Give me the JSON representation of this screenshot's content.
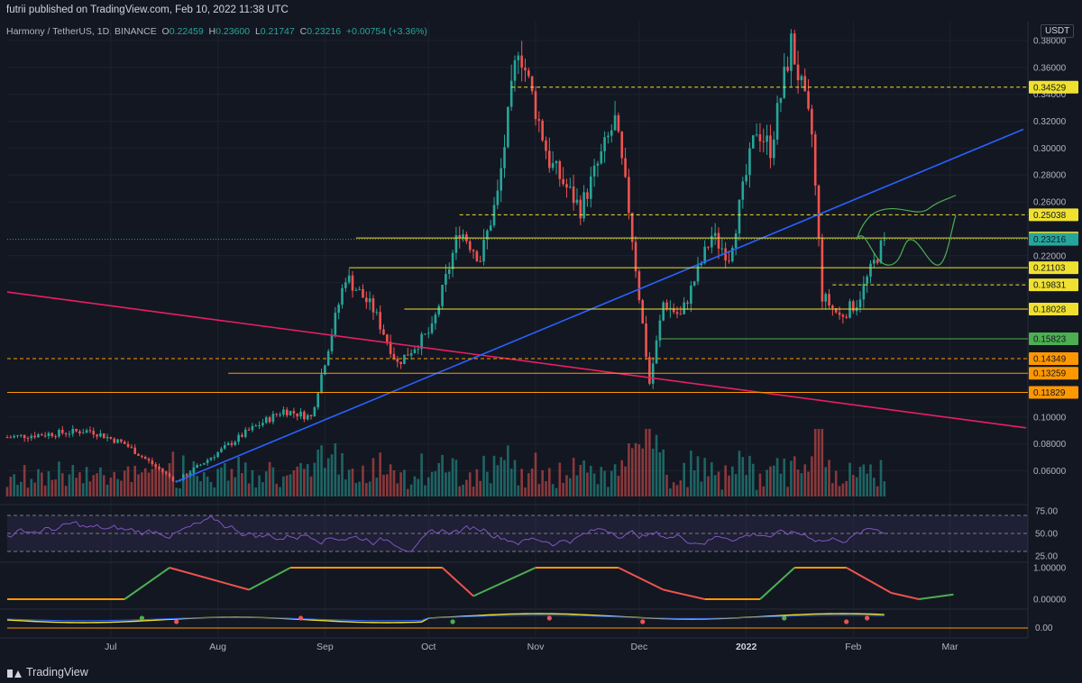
{
  "header": {
    "published": "futrii published on TradingView.com, Feb 10, 2022 11:38 UTC"
  },
  "legend": {
    "symbol": "Harmony / TetherUS, 1D, BINANCE",
    "o_label": "O",
    "o_value": "0.22459",
    "h_label": "H",
    "h_value": "0.23600",
    "l_label": "L",
    "l_value": "0.21747",
    "c_label": "C",
    "c_value": "0.23216",
    "change": "+0.00754 (+3.36%)"
  },
  "currency": "USDT",
  "footer": {
    "brand": "TradingView"
  },
  "colors": {
    "background": "#131722",
    "up": "#26a69a",
    "down": "#ef5350",
    "level_yellow": "#f0e130",
    "level_green": "#4caf50",
    "level_orange": "#ff9800",
    "trend_pink": "#e91e63",
    "trend_blue": "#2962ff",
    "projection_green": "#4caf50",
    "rsi": "#7e57c2"
  },
  "chart_data": [
    {
      "type": "candlestick",
      "title": "",
      "y_scale": "linear",
      "ylim": [
        0.05,
        0.385
      ],
      "y_ticks": [
        "0.38000",
        "0.36000",
        "0.34000",
        "0.32000",
        "0.30000",
        "0.28000",
        "0.26000",
        "0.22000",
        "0.20000",
        "0.10000",
        "0.08000",
        "0.06000"
      ],
      "x_ticks": [
        "Jul",
        "Aug",
        "Sep",
        "Oct",
        "Nov",
        "Dec",
        "2022",
        "Feb",
        "Mar"
      ],
      "last_price": "0.23216",
      "price_levels": [
        {
          "label": "0.34529",
          "value": 0.34529,
          "style": "dashed",
          "color": "yellow"
        },
        {
          "label": "0.25038",
          "value": 0.25038,
          "style": "dashed",
          "color": "yellow"
        },
        {
          "label": "0.23314",
          "value": 0.23314,
          "style": "solid",
          "color": "yellow"
        },
        {
          "label": "0.21103",
          "value": 0.21103,
          "style": "solid",
          "color": "yellow"
        },
        {
          "label": "0.19831",
          "value": 0.19831,
          "style": "dashed",
          "color": "yellow"
        },
        {
          "label": "0.18028",
          "value": 0.18028,
          "style": "solid",
          "color": "yellow"
        },
        {
          "label": "0.15823",
          "value": 0.15823,
          "style": "solid",
          "color": "green"
        },
        {
          "label": "0.14349",
          "value": 0.14349,
          "style": "dashed",
          "color": "orange"
        },
        {
          "label": "0.13259",
          "value": 0.13259,
          "style": "solid",
          "color": "orange"
        },
        {
          "label": "0.11829",
          "value": 0.11829,
          "style": "solid",
          "color": "orange"
        }
      ],
      "trendlines": [
        {
          "name": "descending",
          "from_price": 0.193,
          "to_price": 0.092,
          "color": "pink"
        },
        {
          "name": "ascending",
          "from_price": 0.052,
          "to_price": 0.314,
          "color": "blue"
        }
      ],
      "key_points": [
        {
          "date": "2021-06-25",
          "price": 0.09
        },
        {
          "date": "2021-07-20",
          "price": 0.052
        },
        {
          "date": "2021-09-07",
          "price": 0.205
        },
        {
          "date": "2021-10-27",
          "price": 0.378
        },
        {
          "date": "2021-12-04",
          "price": 0.125
        },
        {
          "date": "2022-01-14",
          "price": 0.378
        },
        {
          "date": "2022-02-10",
          "price": 0.232
        }
      ]
    },
    {
      "type": "line",
      "title": "",
      "y_ticks": [
        "75.00",
        "50.00",
        "25.00"
      ],
      "band": [
        30,
        70
      ],
      "midline": 50
    },
    {
      "type": "line",
      "title": "",
      "y_ticks": [
        "1.00000",
        "0.00000"
      ]
    },
    {
      "type": "line",
      "title": "",
      "y_ticks": [
        "0.00"
      ]
    }
  ]
}
